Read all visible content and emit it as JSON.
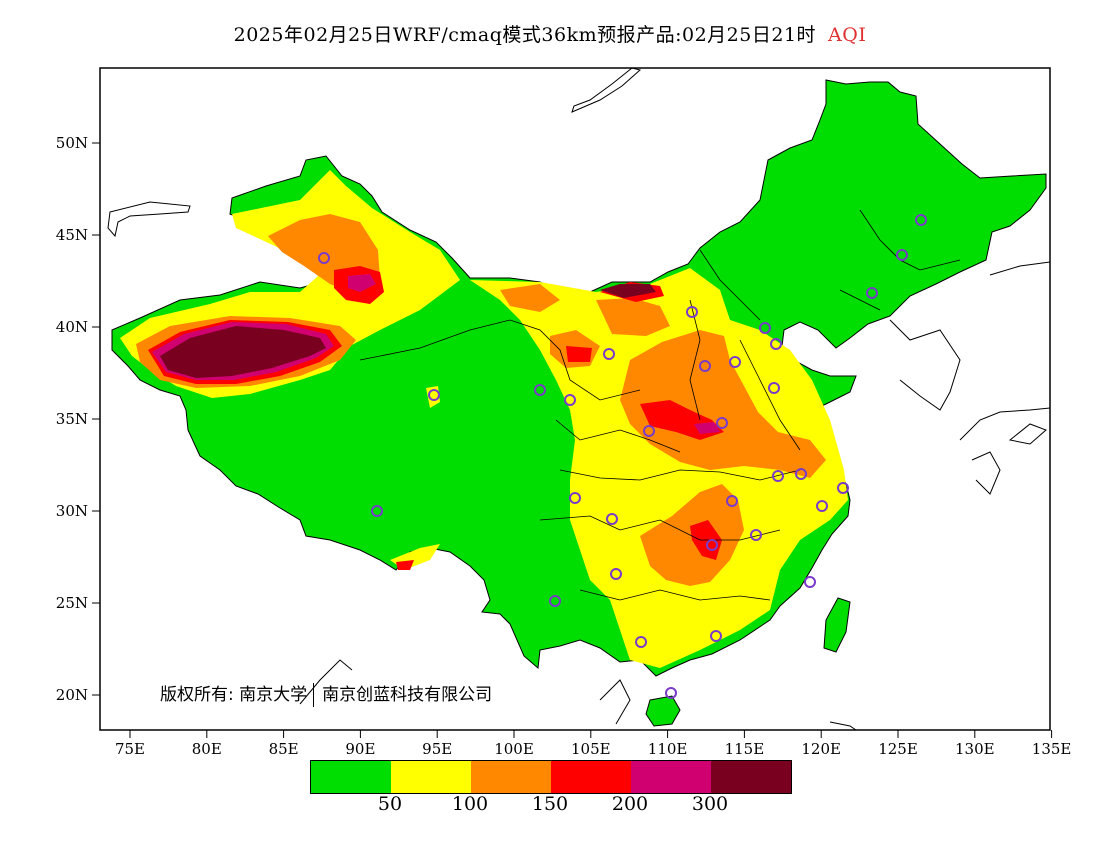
{
  "title": {
    "text": "2025年02月25日WRF/cmaq模式36km预报产品:02月25日21时",
    "product": "AQI"
  },
  "map": {
    "lat_ticks": [
      "50N",
      "45N",
      "40N",
      "35N",
      "30N",
      "25N",
      "20N"
    ],
    "lon_ticks": [
      "75E",
      "80E",
      "85E",
      "90E",
      "95E",
      "100E",
      "105E",
      "110E",
      "115E",
      "120E",
      "125E",
      "130E",
      "135E"
    ],
    "colors": {
      "good": "#00dd00",
      "moderate": "#ffff00",
      "usg": "#ff8800",
      "unhealthy": "#ff0000",
      "very_unhealthy": "#d00070",
      "hazardous": "#7a0020",
      "station_marker": "#7a3cc8",
      "water": "#ffffff"
    }
  },
  "copyright": {
    "owner1": "版权所有: 南京大学",
    "owner2": "南京创蓝科技有限公司"
  },
  "legend": {
    "colors": [
      "#00dd00",
      "#ffff00",
      "#ff8800",
      "#ff0000",
      "#d00070",
      "#7a0020"
    ],
    "labels": [
      "50",
      "100",
      "150",
      "200",
      "300"
    ]
  }
}
